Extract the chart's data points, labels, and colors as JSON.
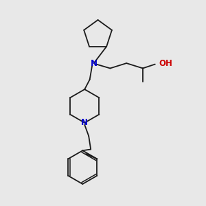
{
  "bg_color": "#e8e8e8",
  "bond_color": "#1a1a1a",
  "N_color": "#0000cc",
  "O_color": "#cc0000",
  "OH_color": "#5a9a9a",
  "bond_width": 1.3,
  "font_size": 8.5,
  "figsize": [
    3.0,
    3.0
  ],
  "dpi": 100,
  "xlim": [
    0.0,
    10.0
  ],
  "ylim": [
    0.5,
    10.5
  ]
}
